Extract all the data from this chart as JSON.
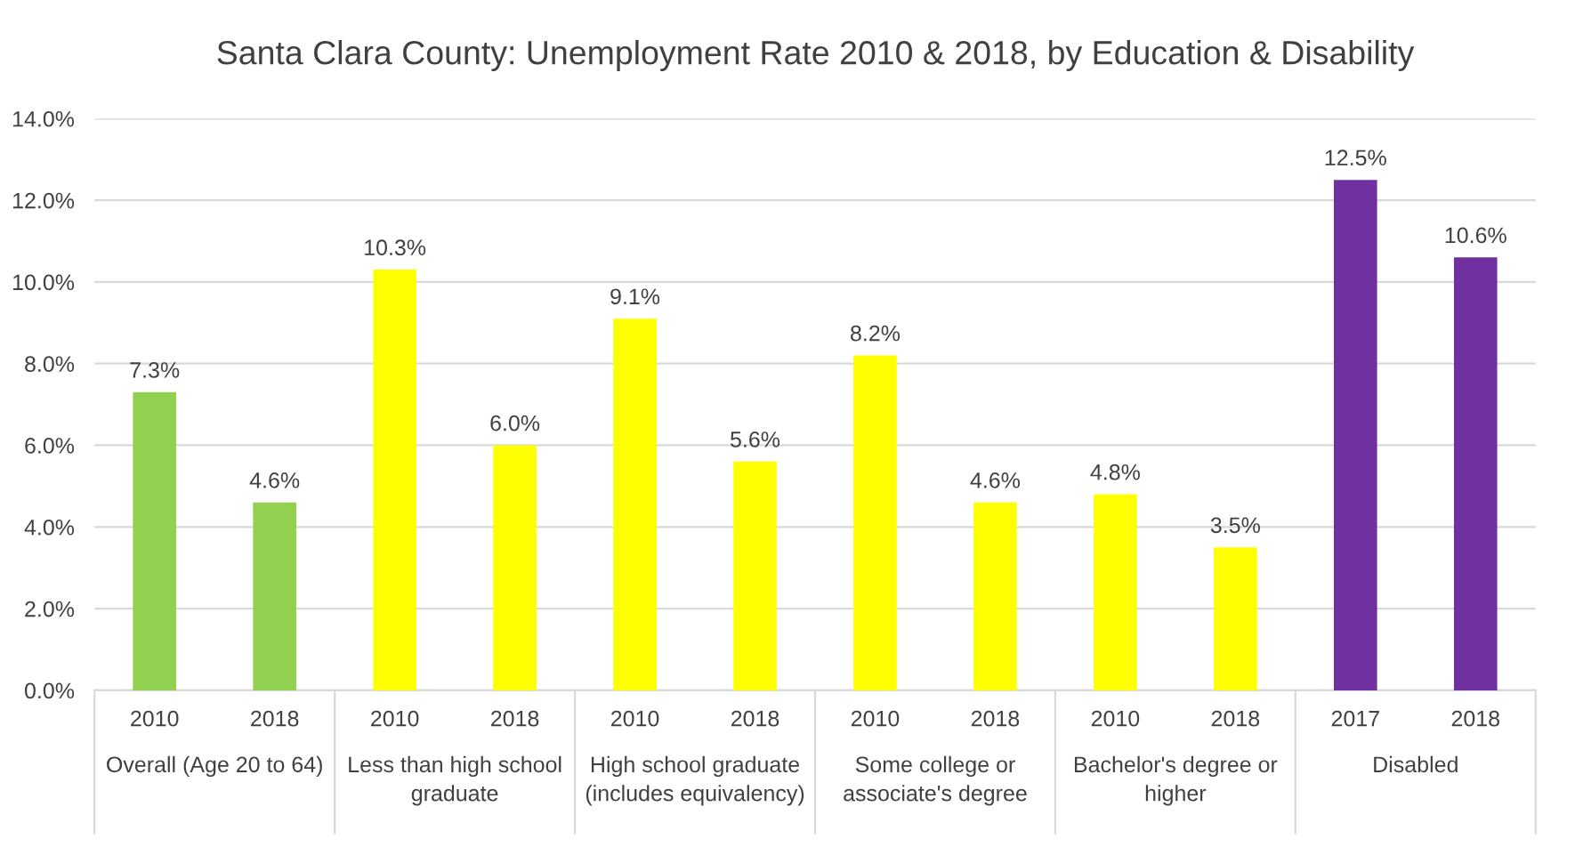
{
  "chart_data": {
    "type": "bar",
    "title": "Santa Clara County: Unemployment Rate 2010 & 2018, by Education & Disability",
    "categories": [
      "2010",
      "2018",
      "2010",
      "2018",
      "2010",
      "2018",
      "2010",
      "2018",
      "2010",
      "2018",
      "2017",
      "2018"
    ],
    "values": [
      7.3,
      4.6,
      10.3,
      6.0,
      9.1,
      5.6,
      8.2,
      4.6,
      4.8,
      3.5,
      12.5,
      10.6
    ],
    "value_labels": [
      "7.3%",
      "4.6%",
      "10.3%",
      "6.0%",
      "9.1%",
      "5.6%",
      "8.2%",
      "4.6%",
      "4.8%",
      "3.5%",
      "12.5%",
      "10.6%"
    ],
    "colors": [
      "#92d050",
      "#92d050",
      "#ffff00",
      "#ffff00",
      "#ffff00",
      "#ffff00",
      "#ffff00",
      "#ffff00",
      "#ffff00",
      "#ffff00",
      "#7030a0",
      "#7030a0"
    ],
    "annotations": [
      "Overall (Age 20 to 64)",
      "Less than high school\ngraduate",
      "High school graduate\n(includes equivalency)",
      "Some college or\nassociate's degree",
      "Bachelor's degree or\nhigher",
      "Disabled"
    ],
    "ylim": [
      0,
      14
    ],
    "yticks": [
      {
        "value": 0,
        "label": "0.0%"
      },
      {
        "value": 2,
        "label": "2.0%"
      },
      {
        "value": 4,
        "label": "4.0%"
      },
      {
        "value": 6,
        "label": "6.0%"
      },
      {
        "value": 8,
        "label": "8.0%"
      },
      {
        "value": 10,
        "label": "10.0%"
      },
      {
        "value": 12,
        "label": "12.0%"
      },
      {
        "value": 14,
        "label": "14.0%"
      }
    ],
    "grid": "y"
  }
}
